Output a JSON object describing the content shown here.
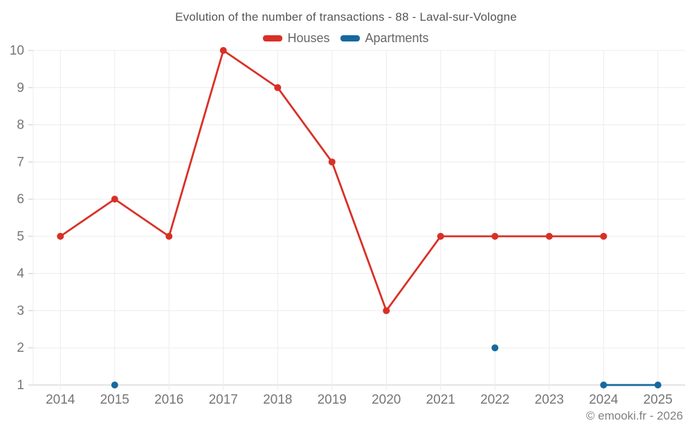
{
  "chart_data": {
    "type": "line",
    "title": "Evolution of the number of transactions - 88 - Laval-sur-Vologne",
    "categories": [
      "2014",
      "2015",
      "2016",
      "2017",
      "2018",
      "2019",
      "2020",
      "2021",
      "2022",
      "2023",
      "2024",
      "2025"
    ],
    "series": [
      {
        "name": "Houses",
        "color": "#d93026",
        "values": [
          5,
          6,
          5,
          10,
          9,
          7,
          3,
          5,
          5,
          5,
          5,
          null
        ]
      },
      {
        "name": "Apartments",
        "color": "#16699e",
        "values": [
          null,
          1,
          null,
          null,
          null,
          null,
          null,
          null,
          2,
          null,
          1,
          1
        ]
      }
    ],
    "xlabel": "",
    "ylabel": "",
    "ylim": [
      1,
      10
    ],
    "yticks": [
      1,
      2,
      3,
      4,
      5,
      6,
      7,
      8,
      9,
      10
    ],
    "grid": true,
    "legend_position": "top",
    "colors": {
      "grid": "#ececec",
      "axis": "#c9c9c9",
      "tick_label": "#757575",
      "title": "#545454",
      "legend_label": "#666666",
      "watermark": "#808080"
    },
    "watermark": "© emooki.fr - 2026"
  }
}
